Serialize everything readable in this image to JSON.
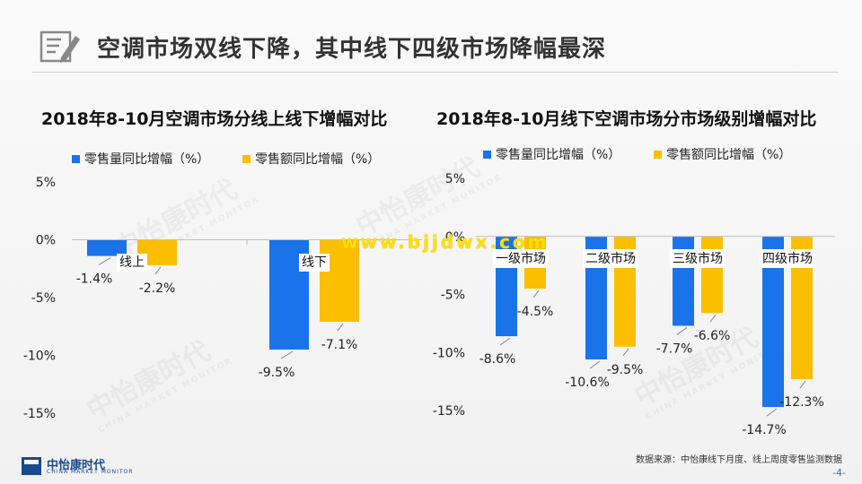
{
  "header": {
    "title": "空调市场双线下降，其中线下四级市场降幅最深",
    "icon": "edit-document-icon"
  },
  "watermark": {
    "text_cn": "中怡康时代",
    "text_en": "CHINA MARKET MONITOR"
  },
  "site_url": "www.bjjdwx.com",
  "source": "数据来源：中怡康线下月度、线上周度零售监测数据",
  "page_number": "-4-",
  "logo": {
    "cn": "中怡康时代",
    "en": "CHINA MARKET MONITOR"
  },
  "colors": {
    "volume": "#1a73e8",
    "amount": "#fbbf00"
  },
  "chart_data": [
    {
      "type": "bar",
      "title": "2018年8-10月空调市场分线上线下增幅对比",
      "categories": [
        "线上",
        "线下"
      ],
      "series": [
        {
          "name": "零售量同比增幅（%）",
          "values": [
            -1.4,
            -9.5
          ],
          "labels": [
            "-1.4%",
            "-9.5%"
          ]
        },
        {
          "name": "零售额同比增幅（%）",
          "values": [
            -2.2,
            -7.1
          ],
          "labels": [
            "-2.2%",
            "-7.1%"
          ]
        }
      ],
      "yticks": [
        5,
        0,
        -5,
        -10,
        -15
      ],
      "ytick_labels": [
        "5%",
        "0%",
        "-5%",
        "-10%",
        "-15%"
      ],
      "ylim": [
        -15,
        5
      ],
      "legend": "top-left",
      "grid": false
    },
    {
      "type": "bar",
      "title": "2018年8-10月线下空调市场分市场级别增幅对比",
      "categories": [
        "一级市场",
        "二级市场",
        "三级市场",
        "四级市场"
      ],
      "series": [
        {
          "name": "零售量同比增幅（%）",
          "values": [
            -8.6,
            -10.6,
            -7.7,
            -14.7
          ],
          "labels": [
            "-8.6%",
            "-10.6%",
            "-7.7%",
            "-14.7%"
          ]
        },
        {
          "name": "零售额同比增幅（%）",
          "values": [
            -4.5,
            -9.5,
            -6.6,
            -12.3
          ],
          "labels": [
            "-4.5%",
            "-9.5%",
            "-6.6%",
            "-12.3%"
          ]
        }
      ],
      "yticks": [
        5,
        0,
        -5,
        -10,
        -15
      ],
      "ytick_labels": [
        "5%",
        "0%",
        "-5%",
        "-10%",
        "-15%"
      ],
      "ylim": [
        -15,
        5
      ],
      "legend": "top-left",
      "grid": false
    }
  ]
}
